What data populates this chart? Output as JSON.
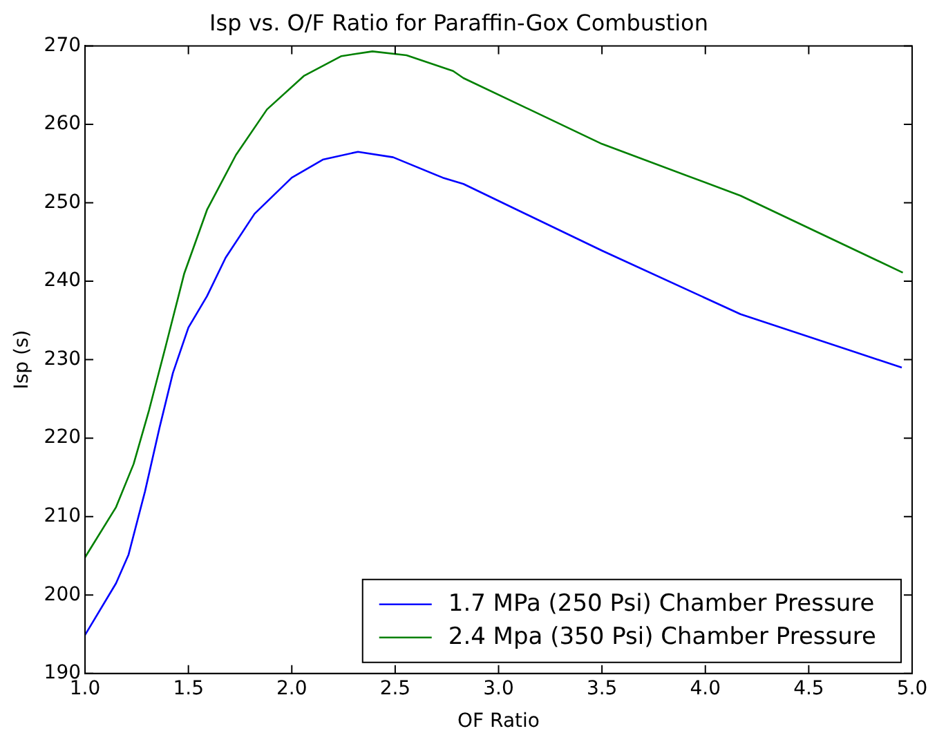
{
  "chart_data": {
    "type": "line",
    "title": "Isp vs. O/F Ratio for Paraffin-Gox Combustion",
    "xlabel": "OF Ratio",
    "ylabel": "Isp (s)",
    "xlim": [
      1.0,
      5.0
    ],
    "xticks": [
      {
        "value": 1,
        "label": "1.0"
      },
      {
        "value": 1.5,
        "label": "1.5"
      },
      {
        "value": 2,
        "label": "2.0"
      },
      {
        "value": 2.5,
        "label": "2.5"
      },
      {
        "value": 3,
        "label": "3.0"
      },
      {
        "value": 3.5,
        "label": "3.5"
      },
      {
        "value": 4,
        "label": "4.0"
      },
      {
        "value": 4.5,
        "label": "4.5"
      },
      {
        "value": 5,
        "label": "5.0"
      }
    ],
    "ylim": [
      190,
      270
    ],
    "yticks": [
      190,
      200,
      210,
      220,
      230,
      240,
      250,
      260,
      270
    ],
    "grid": false,
    "legend": "bottom right",
    "marker": "none",
    "line_style": "solid",
    "series": [
      {
        "name": "1.7 MPa (250 Psi) Chamber Pressure",
        "color": "#0000ff",
        "x": [
          1.0,
          1.15,
          1.21,
          1.29,
          1.36,
          1.425,
          1.5,
          1.59,
          1.68,
          1.82,
          2.0,
          2.15,
          2.32,
          2.49,
          2.73,
          2.83,
          3.5,
          4.17,
          4.95
        ],
        "values": [
          194.9,
          201.5,
          205.1,
          213.2,
          221.3,
          228.3,
          234.1,
          238.1,
          243.0,
          248.6,
          253.2,
          255.5,
          256.5,
          255.8,
          253.2,
          252.4,
          243.9,
          235.8,
          229.0
        ]
      },
      {
        "name": "2.4 Mpa (350 Psi) Chamber Pressure",
        "color": "#008000",
        "x": [
          1.0,
          1.15,
          1.235,
          1.31,
          1.39,
          1.48,
          1.59,
          1.73,
          1.88,
          2.06,
          2.24,
          2.39,
          2.555,
          2.78,
          2.83,
          3.5,
          4.17,
          4.955
        ],
        "values": [
          204.8,
          211.2,
          216.7,
          223.6,
          231.7,
          241.0,
          249.1,
          256.1,
          261.9,
          266.2,
          268.7,
          269.3,
          268.8,
          266.8,
          265.9,
          257.5,
          250.9,
          241.1
        ]
      }
    ]
  }
}
